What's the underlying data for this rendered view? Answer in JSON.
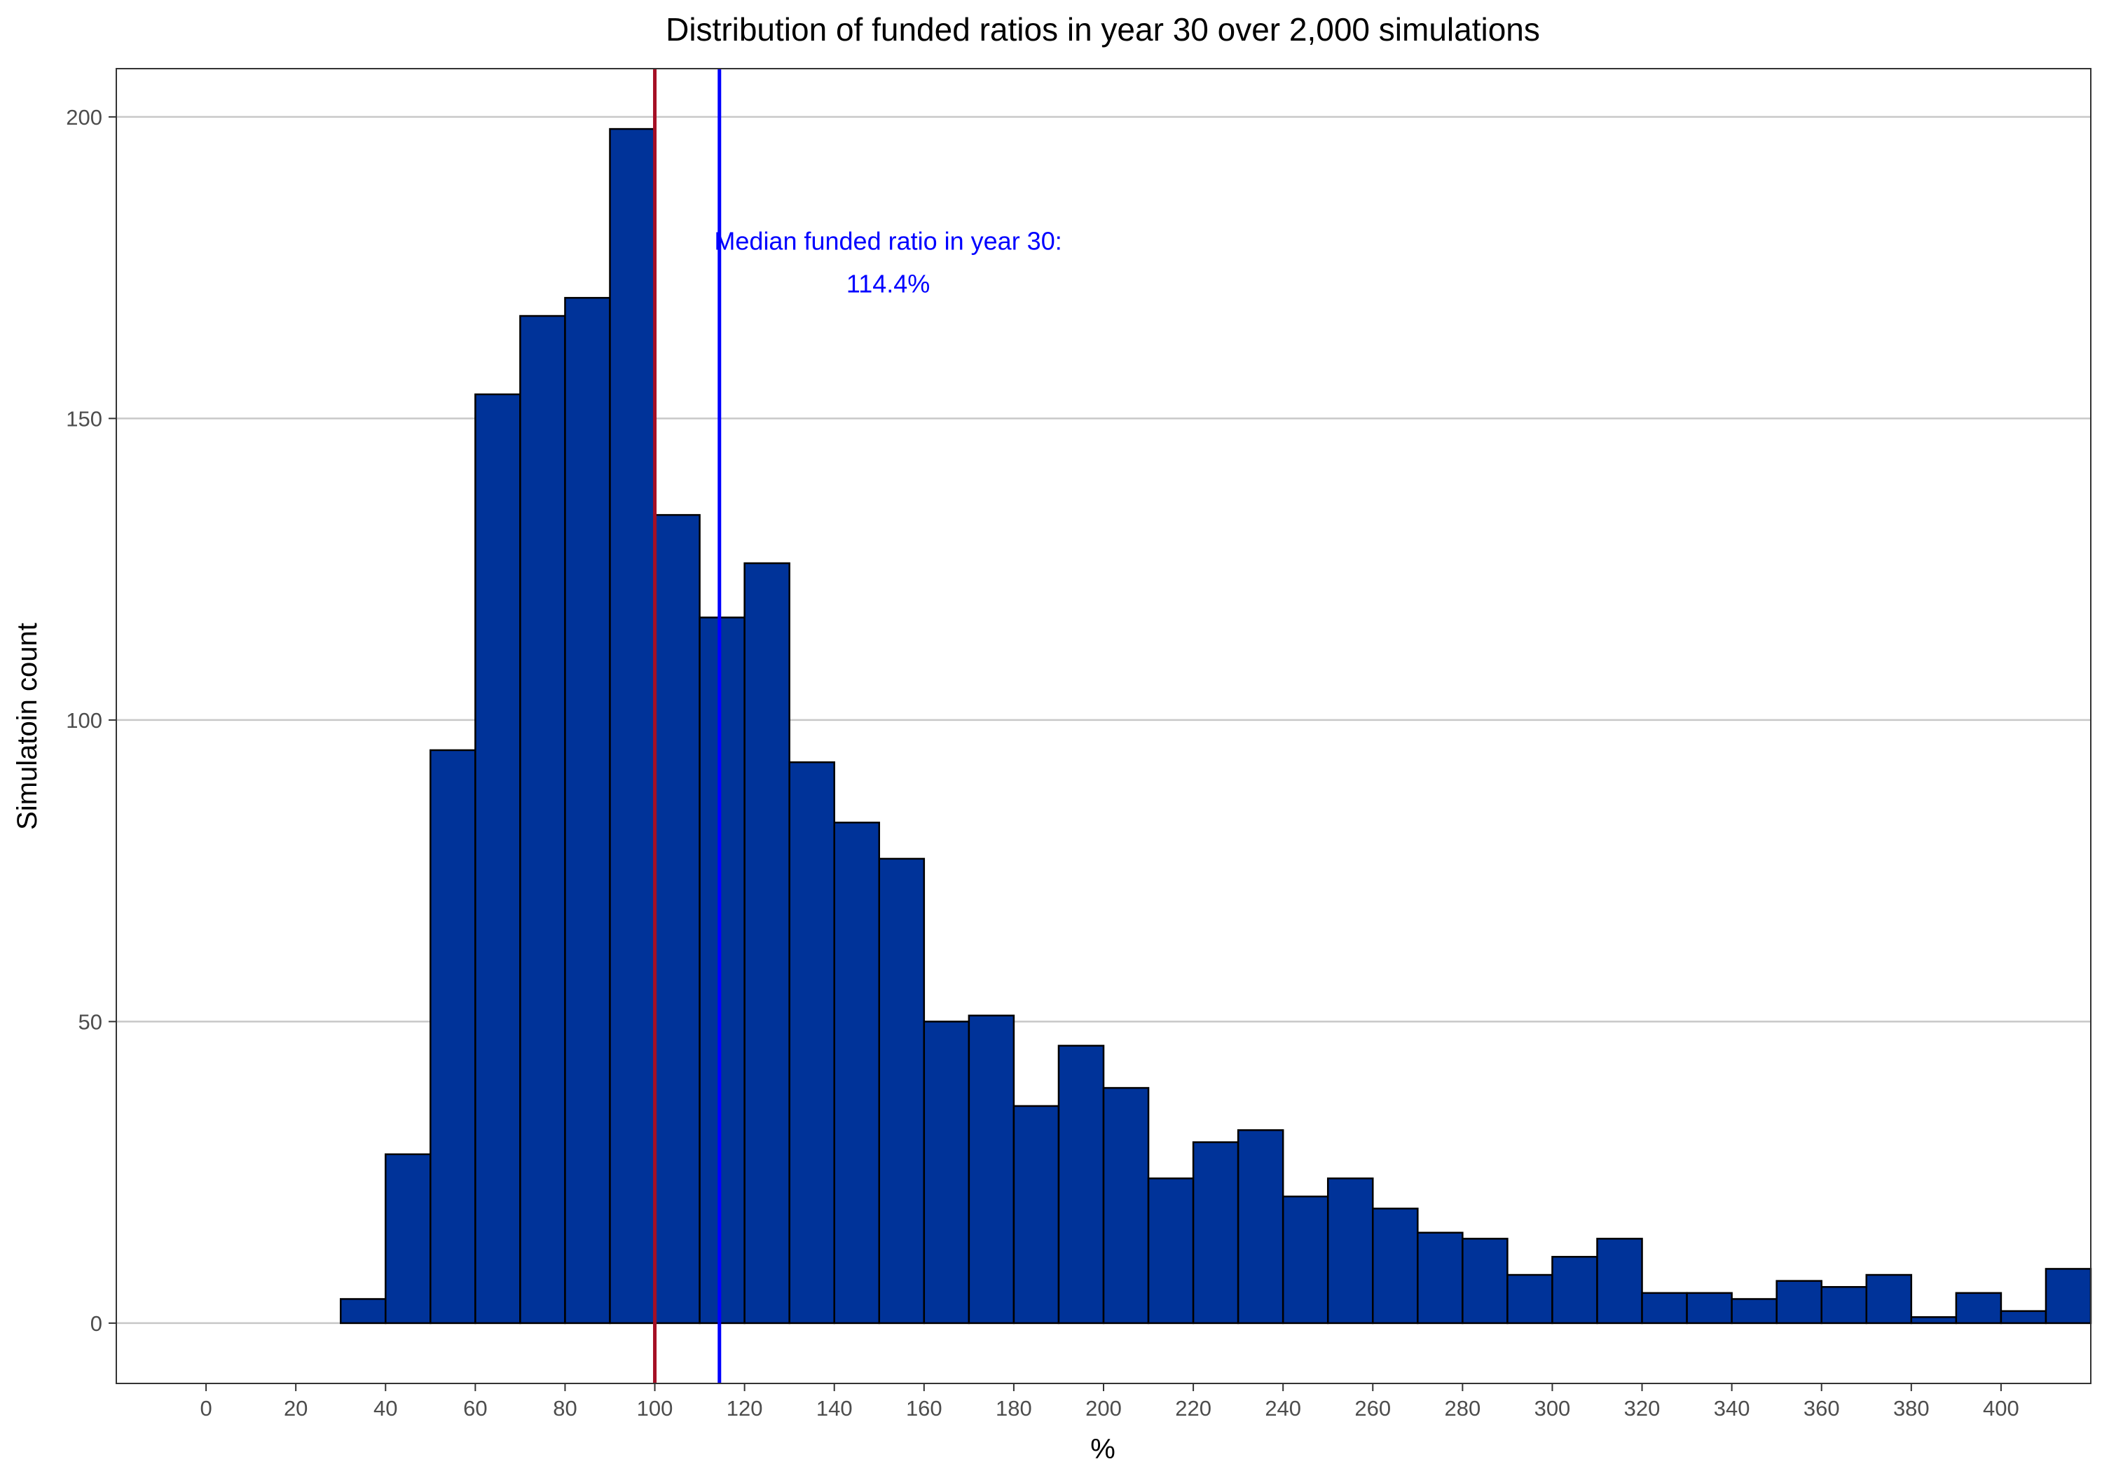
{
  "chart_data": {
    "type": "bar",
    "title": "Distribution of funded ratios in year 30 over 2,000 simulations",
    "xlabel": "%",
    "ylabel": "Simulatoin count",
    "xlim": [
      -20,
      420
    ],
    "ylim": [
      -10,
      208
    ],
    "bin_width": 10,
    "x_ticks": [
      0,
      20,
      40,
      60,
      80,
      100,
      120,
      140,
      160,
      180,
      200,
      220,
      240,
      260,
      280,
      300,
      320,
      340,
      360,
      380,
      400
    ],
    "y_ticks": [
      0,
      50,
      100,
      150,
      200
    ],
    "grid": "horizontal",
    "legend": "none",
    "bins": [
      {
        "x": 30,
        "count": 4
      },
      {
        "x": 40,
        "count": 28
      },
      {
        "x": 50,
        "count": 95
      },
      {
        "x": 60,
        "count": 154
      },
      {
        "x": 70,
        "count": 167
      },
      {
        "x": 80,
        "count": 170
      },
      {
        "x": 90,
        "count": 198
      },
      {
        "x": 100,
        "count": 134
      },
      {
        "x": 110,
        "count": 117
      },
      {
        "x": 120,
        "count": 126
      },
      {
        "x": 130,
        "count": 93
      },
      {
        "x": 140,
        "count": 83
      },
      {
        "x": 150,
        "count": 77
      },
      {
        "x": 160,
        "count": 50
      },
      {
        "x": 170,
        "count": 51
      },
      {
        "x": 180,
        "count": 36
      },
      {
        "x": 190,
        "count": 46
      },
      {
        "x": 200,
        "count": 39
      },
      {
        "x": 210,
        "count": 24
      },
      {
        "x": 220,
        "count": 30
      },
      {
        "x": 230,
        "count": 32
      },
      {
        "x": 240,
        "count": 21
      },
      {
        "x": 250,
        "count": 24
      },
      {
        "x": 260,
        "count": 19
      },
      {
        "x": 270,
        "count": 15
      },
      {
        "x": 280,
        "count": 14
      },
      {
        "x": 290,
        "count": 8
      },
      {
        "x": 300,
        "count": 11
      },
      {
        "x": 310,
        "count": 14
      },
      {
        "x": 320,
        "count": 5
      },
      {
        "x": 330,
        "count": 5
      },
      {
        "x": 340,
        "count": 4
      },
      {
        "x": 350,
        "count": 7
      },
      {
        "x": 360,
        "count": 6
      },
      {
        "x": 370,
        "count": 8
      },
      {
        "x": 380,
        "count": 1
      },
      {
        "x": 390,
        "count": 5
      },
      {
        "x": 400,
        "count": 2
      },
      {
        "x": 410,
        "count": 9
      }
    ],
    "reference_lines": [
      {
        "x": 100,
        "color": "#a50f25"
      },
      {
        "x": 114.4,
        "color": "#0000ff"
      }
    ],
    "annotation": {
      "lines": [
        "Median funded ratio in year 30:",
        "114.4%"
      ],
      "x": 152,
      "y": 178,
      "color": "#0000ff"
    },
    "colors": {
      "bar_fill": "#003399",
      "bar_stroke": "#000000",
      "grid": "#c8c8c8"
    }
  }
}
